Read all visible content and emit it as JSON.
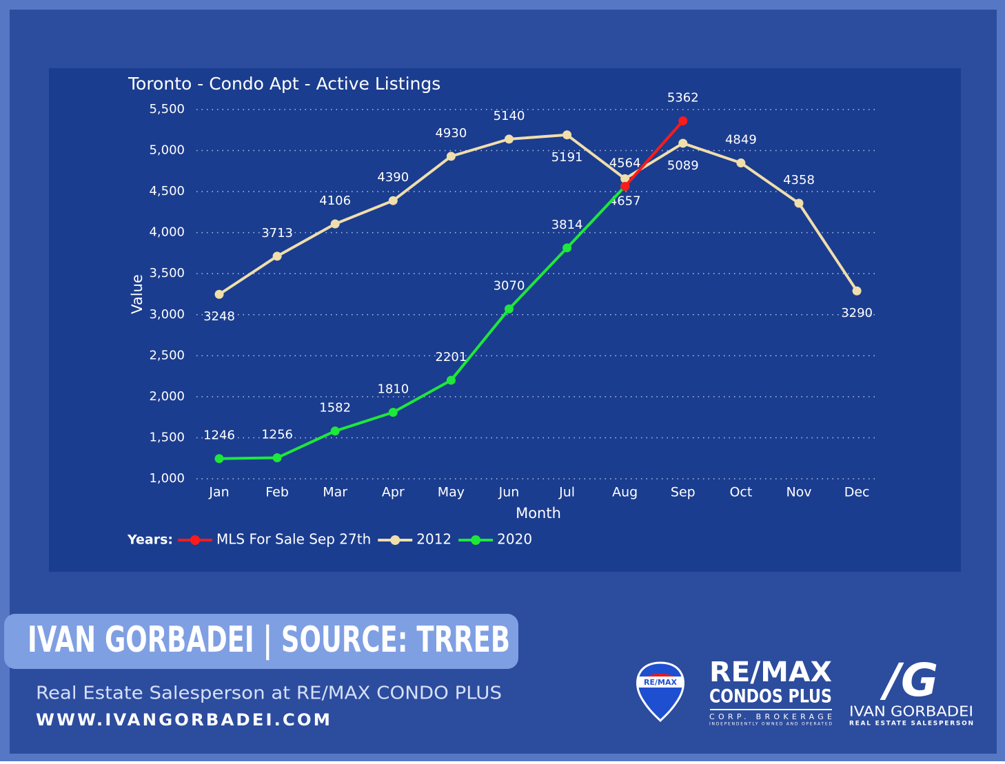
{
  "chart_data": {
    "type": "line",
    "title": "Toronto - Condo Apt - Active Listings",
    "x_label": "Month",
    "y_label": "Value",
    "legend_title": "Years:",
    "categories": [
      "Jan",
      "Feb",
      "Mar",
      "Apr",
      "May",
      "Jun",
      "Jul",
      "Aug",
      "Sep",
      "Oct",
      "Nov",
      "Dec"
    ],
    "series": [
      {
        "name": "MLS For Sale Sep 27th",
        "color": "#ff1a1a",
        "values": [
          null,
          null,
          null,
          null,
          null,
          null,
          null,
          4564,
          5362,
          null,
          null,
          null
        ]
      },
      {
        "name": "2012",
        "color": "#f0deab",
        "values": [
          3248,
          3713,
          4106,
          4390,
          4930,
          5140,
          5191,
          4657,
          5089,
          4849,
          4358,
          3290
        ]
      },
      {
        "name": "2020",
        "color": "#1ee83a",
        "values": [
          1246,
          1256,
          1582,
          1810,
          2201,
          3070,
          3814,
          4564,
          null,
          null,
          null,
          null
        ]
      }
    ],
    "ylim": [
      1000,
      5500
    ],
    "yticks": [
      {
        "value": 1000,
        "label": "1,000"
      },
      {
        "value": 1500,
        "label": "1,500"
      },
      {
        "value": 2000,
        "label": "2,000"
      },
      {
        "value": 2500,
        "label": "2,500"
      },
      {
        "value": 3000,
        "label": "3,000"
      },
      {
        "value": 3500,
        "label": "3,500"
      },
      {
        "value": 4000,
        "label": "4,000"
      },
      {
        "value": 4500,
        "label": "4,500"
      },
      {
        "value": 5000,
        "label": "5,000"
      },
      {
        "value": 5500,
        "label": "5,500"
      }
    ],
    "grid": true,
    "legend": "bottom-left"
  },
  "branding": {
    "banner": "IVAN GORBADEI | SOURCE: TRREB",
    "tagline": "Real Estate Salesperson at RE/MAX CONDO PLUS",
    "website": "WWW.IVANGORBADEI.COM",
    "balloon": "RE/MAX",
    "remax": "RE/MAX",
    "condos": "CONDOS PLUS",
    "brokerage": "CORP. BROKERAGE",
    "owned": "INDEPENDENTLY OWNED AND OPERATED",
    "monogram": "/G",
    "agent": "IVAN GORBADEI",
    "agent_title": "REAL ESTATE SALESPERSON"
  }
}
